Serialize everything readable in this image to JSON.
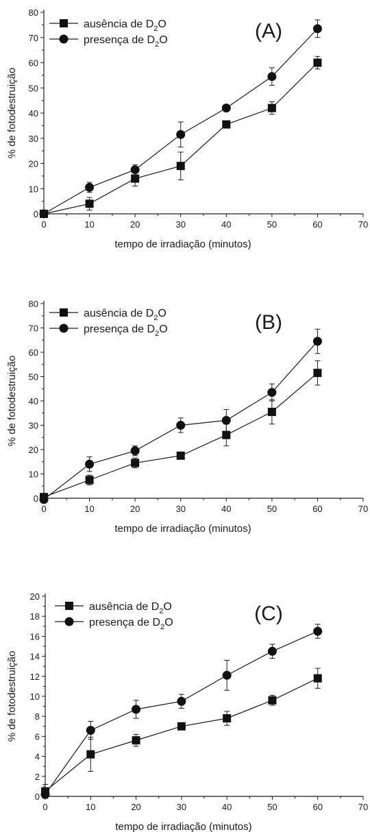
{
  "chart_data": [
    {
      "type": "line",
      "panel_label": "(A)",
      "xlabel": "tempo de irradiação (minutos)",
      "ylabel": "% de fotodestruição",
      "xlim": [
        0,
        70
      ],
      "ylim": [
        0,
        80
      ],
      "xticks": [
        "0",
        "10",
        "20",
        "30",
        "40",
        "50",
        "60",
        "70"
      ],
      "yticks": [
        "0",
        "10",
        "20",
        "30",
        "40",
        "50",
        "60",
        "70",
        "80"
      ],
      "grid": false,
      "legend_position": "top-left",
      "series": [
        {
          "name": "ausência de D2O",
          "legend_prefix": "ausência de D",
          "legend_sub": "2",
          "legend_suffix": "O",
          "marker": "square",
          "x": [
            0,
            10,
            20,
            30,
            40,
            50,
            60
          ],
          "y": [
            0,
            4,
            14,
            19,
            35.5,
            42,
            60
          ],
          "err": [
            0,
            2.5,
            3,
            5.5,
            0.5,
            2.5,
            2.5
          ]
        },
        {
          "name": "presença de D2O",
          "legend_prefix": "presença de D",
          "legend_sub": "2",
          "legend_suffix": "O",
          "marker": "circle",
          "x": [
            0,
            10,
            20,
            30,
            40,
            50,
            60
          ],
          "y": [
            0,
            10.5,
            17.5,
            31.5,
            42,
            54.5,
            73.5
          ],
          "err": [
            0,
            2,
            2,
            5,
            0.5,
            3.5,
            3.5
          ]
        }
      ]
    },
    {
      "type": "line",
      "panel_label": "(B)",
      "xlabel": "tempo de irradiação (minutos)",
      "ylabel": "% de fotodestruição",
      "xlim": [
        0,
        70
      ],
      "ylim": [
        0,
        80
      ],
      "xticks": [
        "0",
        "10",
        "20",
        "30",
        "40",
        "50",
        "60",
        "70"
      ],
      "yticks": [
        "0",
        "10",
        "20",
        "30",
        "40",
        "50",
        "60",
        "70",
        "80"
      ],
      "grid": false,
      "legend_position": "top-left",
      "series": [
        {
          "name": "ausência de D2O",
          "legend_prefix": "ausência de D",
          "legend_sub": "2",
          "legend_suffix": "O",
          "marker": "square",
          "x": [
            0,
            10,
            20,
            30,
            40,
            50,
            60
          ],
          "y": [
            0.5,
            7.5,
            14.5,
            17.5,
            26,
            35.5,
            51.5
          ],
          "err": [
            0,
            2,
            2,
            0.5,
            4.5,
            5,
            5
          ]
        },
        {
          "name": "presença de D2O",
          "legend_prefix": "presença de D",
          "legend_sub": "2",
          "legend_suffix": "O",
          "marker": "circle",
          "x": [
            0,
            10,
            20,
            30,
            40,
            50,
            60
          ],
          "y": [
            -0.5,
            14,
            19.5,
            30,
            32,
            43.5,
            64.5
          ],
          "err": [
            0,
            3,
            2,
            3,
            4.5,
            3.5,
            5
          ]
        }
      ]
    },
    {
      "type": "line",
      "panel_label": "(C)",
      "xlabel": "tempo de irradiação (minutos)",
      "ylabel": "% de fotodestruição",
      "xlim": [
        0,
        70
      ],
      "ylim": [
        0,
        20
      ],
      "xticks": [
        "0",
        "10",
        "20",
        "30",
        "40",
        "50",
        "60",
        "70"
      ],
      "yticks": [
        "0",
        "2",
        "4",
        "6",
        "8",
        "10",
        "12",
        "14",
        "16",
        "18",
        "20"
      ],
      "grid": false,
      "legend_position": "top-left",
      "series": [
        {
          "name": "ausência de D2O",
          "legend_prefix": "ausência de D",
          "legend_sub": "2",
          "legend_suffix": "O",
          "marker": "square",
          "x": [
            0,
            10,
            20,
            30,
            40,
            50,
            60
          ],
          "y": [
            0.5,
            4.2,
            5.6,
            7.0,
            7.8,
            9.6,
            11.8
          ],
          "err": [
            0.7,
            1.7,
            0.6,
            0.1,
            0.7,
            0.5,
            1.0
          ]
        },
        {
          "name": "presença de D2O",
          "legend_prefix": "presença de D",
          "legend_sub": "2",
          "legend_suffix": "O",
          "marker": "circle",
          "x": [
            0,
            10,
            20,
            30,
            40,
            50,
            60
          ],
          "y": [
            0.2,
            6.6,
            8.7,
            9.5,
            12.1,
            14.5,
            16.5
          ],
          "err": [
            0,
            0.9,
            0.9,
            0.7,
            1.5,
            0.7,
            0.7
          ]
        }
      ]
    }
  ]
}
